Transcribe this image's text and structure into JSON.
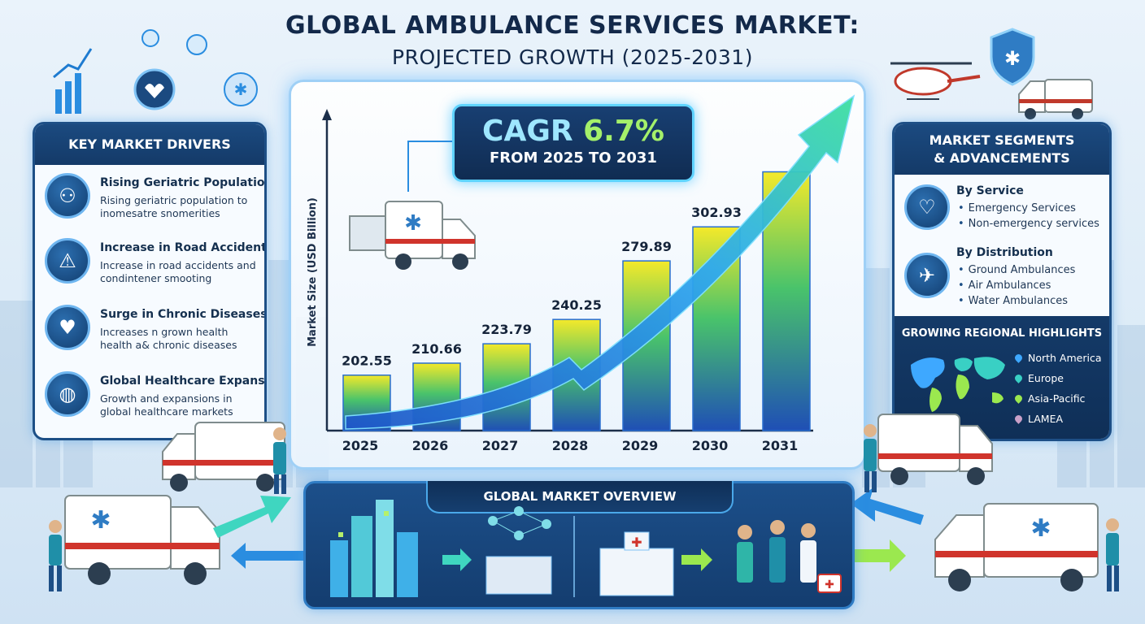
{
  "title": "GLOBAL AMBULANCE SERVICES MARKET:",
  "subtitle": "PROJECTED GROWTH (2025-2031)",
  "colors": {
    "navy": "#143a68",
    "accent": "#5fd3ff",
    "bar_top": "#f4e92a",
    "bar_bottom": "#1f4fb5"
  },
  "drivers": {
    "heading": "KEY MARKET DRIVERS",
    "items": [
      {
        "title": "Rising Geriatric Population",
        "desc": "Rising geriatric population to inomesatre snomerities",
        "icon": "elderly-couple-icon"
      },
      {
        "title": "Increase in Road Accidents",
        "desc": "Increase in road accidents and condintener smooting",
        "icon": "car-crash-icon"
      },
      {
        "title": "Surge in Chronic Diseases",
        "desc": "Increases n grown health health a& chronic diseases",
        "icon": "heart-pulse-icon"
      },
      {
        "title": "Global Healthcare Expansion",
        "desc": "Growth and expansions in global healthcare markets",
        "icon": "globe-icon"
      }
    ]
  },
  "cagr": {
    "prefix": "CAGR ",
    "value": "6.7%",
    "period": "FROM 2025 TO 2031"
  },
  "chart_data": {
    "type": "bar",
    "categories": [
      "2025",
      "2026",
      "2027",
      "2028",
      "2029",
      "2030",
      "2031"
    ],
    "values": [
      202.55,
      210.66,
      223.79,
      240.25,
      279.89,
      302.93,
      null
    ],
    "value_labels": [
      "202.55",
      "210.66",
      "223.79",
      "240.25",
      "279.89",
      "302.93",
      ""
    ],
    "bar_fraction_2031": 1.0,
    "ylabel": "Market Size (USD Billion)",
    "xlabel": "",
    "trend_arrow": true
  },
  "segments": {
    "heading_line1": "MARKET SEGMENTS",
    "heading_line2": "& ADVANCEMENTS",
    "service": {
      "title": "By Service",
      "items": [
        "Emergency Services",
        "Non-emergency services"
      ],
      "icon": "hand-heart-icon"
    },
    "distribution": {
      "title": "By Distribution",
      "items": [
        "Ground Ambulances",
        "Air Ambulances",
        "Water Ambulances"
      ],
      "icon": "airplane-icon"
    }
  },
  "regional": {
    "title": "GROWING REGIONAL HIGHLIGHTS",
    "items": [
      {
        "name": "North America",
        "color": "#3ea8ff"
      },
      {
        "name": "Europe",
        "color": "#39d0c4"
      },
      {
        "name": "Asia-Pacific",
        "color": "#9be84f"
      },
      {
        "name": "LAMEA",
        "color": "#c9a0c8"
      }
    ]
  },
  "overview": {
    "title": "GLOBAL MARKET OVERVIEW"
  }
}
